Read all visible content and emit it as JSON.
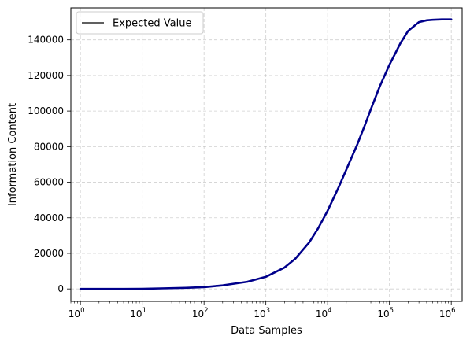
{
  "chart_data": {
    "type": "line",
    "title": "",
    "xlabel": "Data Samples",
    "ylabel": "Information Content",
    "xscale": "log",
    "xlim": [
      0.7,
      1500000
    ],
    "ylim": [
      -7000,
      158000
    ],
    "grid": true,
    "legend": {
      "position": "top-left",
      "entries": [
        "Expected Value"
      ]
    },
    "x_ticks": [
      {
        "value": 1,
        "base": "10",
        "exp": "0"
      },
      {
        "value": 10,
        "base": "10",
        "exp": "1"
      },
      {
        "value": 100,
        "base": "10",
        "exp": "2"
      },
      {
        "value": 1000,
        "base": "10",
        "exp": "3"
      },
      {
        "value": 10000,
        "base": "10",
        "exp": "4"
      },
      {
        "value": 100000,
        "base": "10",
        "exp": "5"
      },
      {
        "value": 1000000,
        "base": "10",
        "exp": "6"
      }
    ],
    "y_ticks": [
      {
        "value": 0,
        "label": "0"
      },
      {
        "value": 20000,
        "label": "20000"
      },
      {
        "value": 40000,
        "label": "40000"
      },
      {
        "value": 60000,
        "label": "60000"
      },
      {
        "value": 80000,
        "label": "80000"
      },
      {
        "value": 100000,
        "label": "100000"
      },
      {
        "value": 120000,
        "label": "120000"
      },
      {
        "value": 140000,
        "label": "140000"
      }
    ],
    "series": [
      {
        "name": "Expected Value",
        "color": "#00008b",
        "legend_color": "#000000",
        "x": [
          1,
          2,
          5,
          10,
          20,
          50,
          100,
          200,
          500,
          1000,
          2000,
          3000,
          5000,
          7000,
          10000,
          15000,
          20000,
          30000,
          40000,
          50000,
          70000,
          100000,
          150000,
          200000,
          300000,
          400000,
          500000,
          700000,
          1000000
        ],
        "y": [
          0,
          0,
          0,
          50,
          300,
          600,
          1000,
          2000,
          4000,
          6800,
          12000,
          17000,
          26000,
          34000,
          44000,
          57000,
          67000,
          81000,
          92000,
          101000,
          114000,
          126000,
          138000,
          145000,
          150000,
          151000,
          151300,
          151500,
          151500
        ]
      }
    ]
  }
}
